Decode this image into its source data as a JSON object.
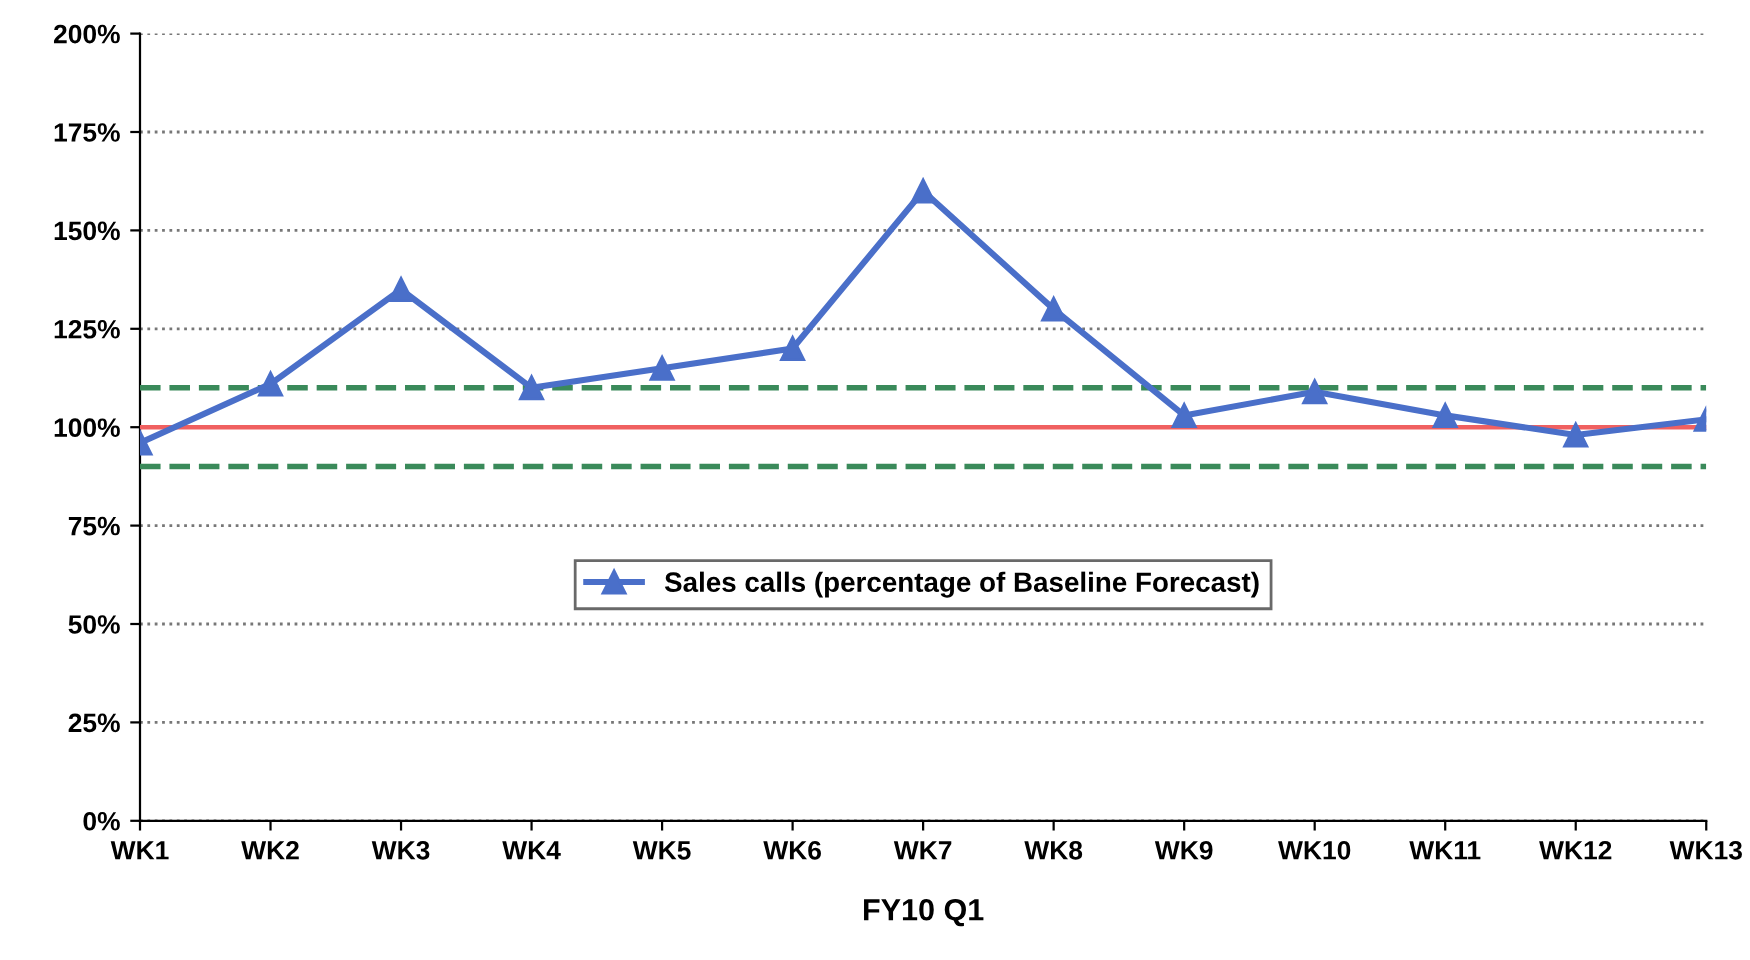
{
  "chart_data": {
    "type": "line",
    "xlabel": "FY10 Q1",
    "categories": [
      "WK1",
      "WK2",
      "WK3",
      "WK4",
      "WK5",
      "WK6",
      "WK7",
      "WK8",
      "WK9",
      "WK10",
      "WK11",
      "WK12",
      "WK13"
    ],
    "series": [
      {
        "name": "Sales calls (percentage of Baseline Forecast)",
        "color": "#4a6fc9",
        "values": [
          96,
          111,
          135,
          110,
          115,
          120,
          160,
          130,
          103,
          109,
          103,
          98,
          102
        ]
      }
    ],
    "ylim": [
      0,
      200
    ],
    "yticks": [
      {
        "value": 0,
        "label": "0%"
      },
      {
        "value": 25,
        "label": "25%"
      },
      {
        "value": 50,
        "label": "50%"
      },
      {
        "value": 75,
        "label": "75%"
      },
      {
        "value": 100,
        "label": "100%"
      },
      {
        "value": 125,
        "label": "125%"
      },
      {
        "value": 150,
        "label": "150%"
      },
      {
        "value": 175,
        "label": "175%"
      },
      {
        "value": 200,
        "label": "200%"
      }
    ],
    "ref_lines": [
      {
        "axis": "y",
        "value": 100,
        "label": null,
        "color": "#f06060",
        "line_style": "solid"
      },
      {
        "axis": "y",
        "value": 110,
        "label": null,
        "color": "#3a8a5a",
        "line_style": "dashed"
      },
      {
        "axis": "y",
        "value": 90,
        "label": null,
        "color": "#3a8a5a",
        "line_style": "dashed"
      }
    ],
    "grid": "y",
    "legend": "bottom",
    "marker": "triangle",
    "line_style": "solid"
  }
}
